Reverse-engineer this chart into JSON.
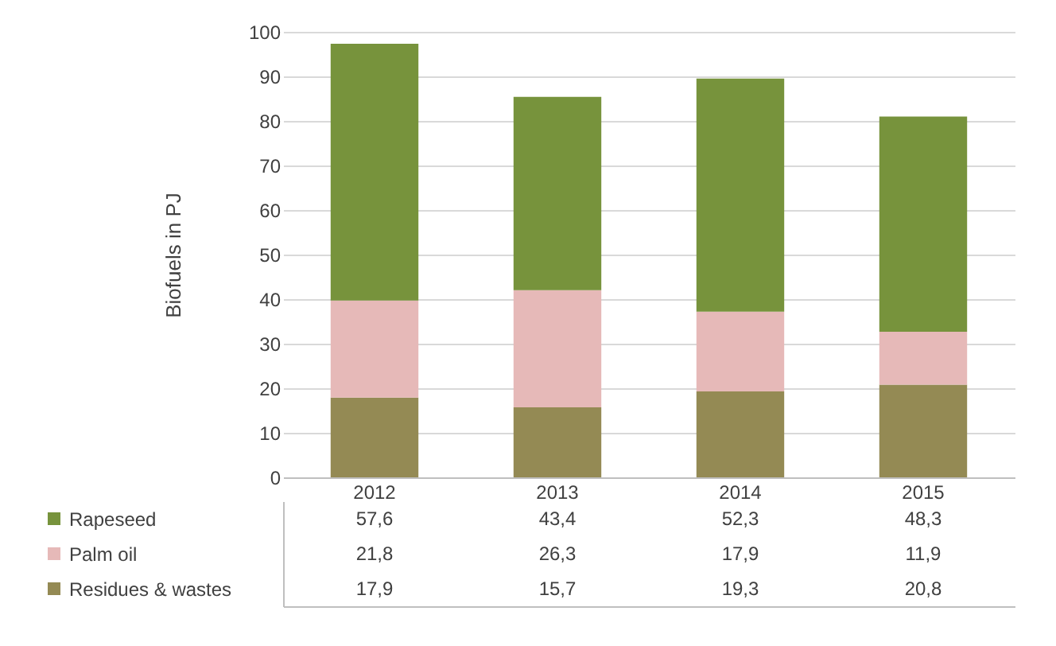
{
  "chart_data": {
    "type": "bar",
    "stacked": true,
    "ylabel": "Biofuels in PJ",
    "categories": [
      "2012",
      "2013",
      "2014",
      "2015"
    ],
    "series": [
      {
        "name": "Residues & wastes",
        "color": "#948a54",
        "values": [
          17.9,
          15.7,
          19.3,
          20.8
        ],
        "value_labels": [
          "17,9",
          "15,7",
          "19,3",
          "20,8"
        ]
      },
      {
        "name": "Palm oil",
        "color": "#e6b9b8",
        "values": [
          21.8,
          26.3,
          17.9,
          11.9
        ],
        "value_labels": [
          "21,8",
          "26,3",
          "17,9",
          "11,9"
        ]
      },
      {
        "name": "Rapeseed",
        "color": "#77933c",
        "values": [
          57.6,
          43.4,
          52.3,
          48.3
        ],
        "value_labels": [
          "57,6",
          "43,4",
          "52,3",
          "48,3"
        ]
      }
    ],
    "ylim": [
      0,
      100
    ],
    "yticks": [
      0,
      10,
      20,
      30,
      40,
      50,
      60,
      70,
      80,
      90,
      100
    ],
    "grid": "y",
    "legend": "bottom"
  }
}
